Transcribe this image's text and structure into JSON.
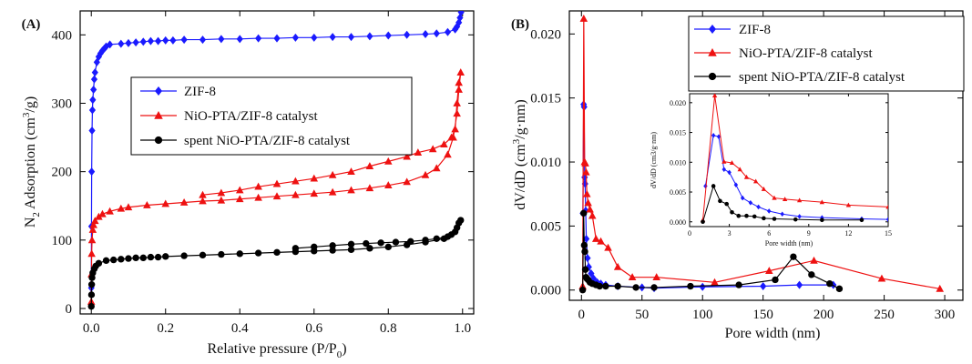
{
  "chart_data": [
    {
      "type": "line",
      "panel_label": "(A)",
      "xlabel": "Relative pressure (P/P0)",
      "xlabel_parts": [
        "Relative pressure (P/P",
        "0",
        ")"
      ],
      "ylabel_parts": [
        "N",
        "2",
        " Adsorption (cm",
        "3",
        "/g)"
      ],
      "xlim": [
        -0.03,
        1.03
      ],
      "ylim": [
        -8,
        435
      ],
      "xticks": [
        0.0,
        0.2,
        0.4,
        0.6,
        0.8,
        1.0
      ],
      "xtick_labels": [
        "0.0",
        "0.2",
        "0.4",
        "0.6",
        "0.8",
        "1.0"
      ],
      "yticks": [
        0,
        100,
        200,
        300,
        400
      ],
      "ytick_labels": [
        "0",
        "100",
        "200",
        "300",
        "400"
      ],
      "legend_position": "center",
      "series": [
        {
          "name": "ZIF-8",
          "color": "#1a1aff",
          "marker": "diamond",
          "x": [
            0.0,
            0.0005,
            0.001,
            0.002,
            0.003,
            0.004,
            0.006,
            0.008,
            0.01,
            0.015,
            0.02,
            0.025,
            0.03,
            0.035,
            0.04,
            0.05,
            0.08,
            0.1,
            0.12,
            0.14,
            0.16,
            0.18,
            0.2,
            0.22,
            0.25,
            0.3,
            0.35,
            0.4,
            0.45,
            0.5,
            0.55,
            0.6,
            0.65,
            0.7,
            0.75,
            0.8,
            0.85,
            0.9,
            0.93,
            0.96,
            0.98,
            0.985,
            0.99,
            0.993,
            0.996
          ],
          "y": [
            30,
            120,
            200,
            260,
            290,
            305,
            320,
            335,
            345,
            360,
            368,
            373,
            377,
            380,
            383,
            386,
            387,
            388,
            389,
            390,
            391,
            391,
            392,
            392,
            393,
            393,
            394,
            394,
            395,
            395,
            396,
            396,
            397,
            397,
            398,
            399,
            400,
            401,
            402,
            404,
            408,
            412,
            418,
            425,
            433
          ]
        },
        {
          "name": "NiO-PTA/ZIF-8 catalyst",
          "color": "#ee1111",
          "marker": "triangle",
          "x": [
            0.0,
            0.0005,
            0.001,
            0.002,
            0.004,
            0.006,
            0.01,
            0.02,
            0.03,
            0.05,
            0.08,
            0.1,
            0.15,
            0.2,
            0.25,
            0.3,
            0.35,
            0.4,
            0.45,
            0.5,
            0.55,
            0.6,
            0.65,
            0.7,
            0.75,
            0.8,
            0.85,
            0.9,
            0.93,
            0.96,
            0.975,
            0.985,
            0.99,
            0.995,
            0.99,
            0.985,
            0.98,
            0.97,
            0.95,
            0.92,
            0.88,
            0.85,
            0.8,
            0.75,
            0.7,
            0.65,
            0.6,
            0.55,
            0.5,
            0.45,
            0.4,
            0.35,
            0.3
          ],
          "y": [
            10,
            50,
            80,
            100,
            115,
            122,
            128,
            134,
            138,
            142,
            146,
            148,
            151,
            153,
            155,
            157,
            158,
            160,
            162,
            164,
            166,
            168,
            170,
            173,
            176,
            180,
            185,
            195,
            205,
            225,
            250,
            285,
            320,
            345,
            330,
            300,
            262,
            250,
            240,
            233,
            228,
            222,
            215,
            208,
            200,
            195,
            190,
            186,
            182,
            178,
            173,
            169,
            166
          ]
        },
        {
          "name": "spent NiO-PTA/ZIF-8 catalyst",
          "color": "#000000",
          "marker": "circle",
          "x": [
            0.0,
            0.0005,
            0.001,
            0.002,
            0.004,
            0.008,
            0.012,
            0.02,
            0.04,
            0.06,
            0.08,
            0.1,
            0.12,
            0.14,
            0.16,
            0.18,
            0.2,
            0.25,
            0.3,
            0.35,
            0.4,
            0.45,
            0.5,
            0.55,
            0.6,
            0.65,
            0.7,
            0.75,
            0.8,
            0.85,
            0.9,
            0.95,
            0.97,
            0.985,
            0.995,
            0.99,
            0.98,
            0.96,
            0.93,
            0.9,
            0.86,
            0.82,
            0.78,
            0.74,
            0.7,
            0.65,
            0.6,
            0.55
          ],
          "y": [
            3,
            20,
            35,
            45,
            52,
            58,
            62,
            66,
            70,
            71,
            72,
            73,
            74,
            74,
            75,
            75,
            76,
            77,
            78,
            79,
            80,
            81,
            82,
            83,
            84,
            85,
            86,
            88,
            90,
            93,
            97,
            102,
            108,
            118,
            129,
            125,
            112,
            105,
            102,
            100,
            98,
            97,
            96,
            95,
            94,
            92,
            90,
            88
          ]
        }
      ]
    },
    {
      "type": "line",
      "panel_label": "(B)",
      "xlabel": "Pore width (nm)",
      "ylabel_parts": [
        "dV/dD (cm",
        "3",
        "/g·nm)"
      ],
      "xlim": [
        -10,
        315
      ],
      "ylim": [
        -0.0008,
        0.0218
      ],
      "xticks": [
        0,
        50,
        100,
        150,
        200,
        250,
        300
      ],
      "xtick_labels": [
        "0",
        "50",
        "100",
        "150",
        "200",
        "250",
        "300"
      ],
      "yticks": [
        0.0,
        0.005,
        0.01,
        0.015,
        0.02
      ],
      "ytick_labels": [
        "0.000",
        "0.005",
        "0.010",
        "0.015",
        "0.020"
      ],
      "legend_position": "top-right",
      "series": [
        {
          "name": "ZIF-8",
          "color": "#1a1aff",
          "marker": "diamond",
          "x": [
            1.2,
            1.8,
            2.2,
            2.6,
            3.0,
            3.5,
            4.0,
            5.0,
            6.0,
            8.0,
            10,
            13,
            16,
            20,
            30,
            50,
            60,
            100,
            150,
            180,
            208
          ],
          "y": [
            0.006,
            0.0145,
            0.0143,
            0.0088,
            0.0083,
            0.0062,
            0.004,
            0.0025,
            0.0018,
            0.0013,
            0.0009,
            0.0006,
            0.0005,
            0.0004,
            0.0003,
            0.0002,
            0.00015,
            0.00025,
            0.0003,
            0.0004,
            0.0004
          ]
        },
        {
          "name": "NiO-PTA/ZIF-8 catalyst",
          "color": "#ee1111",
          "marker": "triangle",
          "x": [
            1.0,
            1.9,
            2.6,
            3.2,
            3.8,
            4.5,
            5.5,
            7,
            9,
            12,
            16,
            22,
            30,
            42,
            62,
            110,
            155,
            192,
            248,
            296
          ],
          "y": [
            0.0003,
            0.0212,
            0.01,
            0.0099,
            0.0092,
            0.0075,
            0.0068,
            0.0063,
            0.0058,
            0.004,
            0.0038,
            0.0033,
            0.0018,
            0.001,
            0.001,
            0.0006,
            0.0015,
            0.0023,
            0.0009,
            0.0001
          ]
        },
        {
          "name": "spent NiO-PTA/ZIF-8 catalyst",
          "color": "#000000",
          "marker": "circle",
          "x": [
            1.0,
            1.8,
            2.3,
            2.8,
            3.2,
            3.8,
            4.5,
            5.5,
            7,
            9,
            12,
            15,
            20,
            30,
            45,
            60,
            90,
            130,
            160,
            175,
            190,
            205,
            213
          ],
          "y": [
            0.0,
            0.006,
            0.0035,
            0.003,
            0.0016,
            0.001,
            0.0009,
            0.0008,
            0.0006,
            0.0005,
            0.0004,
            0.0003,
            0.0003,
            0.0003,
            0.0002,
            0.0002,
            0.0003,
            0.0004,
            0.0008,
            0.0026,
            0.0012,
            0.0005,
            0.0001
          ]
        }
      ]
    },
    {
      "type": "line",
      "panel_label": "",
      "role": "inset",
      "xlabel": "Pore width (nm)",
      "ylabel": "dV/dD (cm3/g·nm)",
      "xlim": [
        0,
        15
      ],
      "ylim": [
        -0.0008,
        0.0215
      ],
      "xticks": [
        0,
        3,
        6,
        9,
        12,
        15
      ],
      "xtick_labels": [
        "0",
        "3",
        "6",
        "9",
        "12",
        "15"
      ],
      "yticks": [
        0.0,
        0.005,
        0.01,
        0.015,
        0.02
      ],
      "ytick_labels": [
        "0.000",
        "0.005",
        "0.010",
        "0.015",
        "0.020"
      ],
      "series": [
        {
          "color": "#1a1aff",
          "marker": "diamond",
          "x": [
            1.2,
            1.8,
            2.2,
            2.6,
            3.0,
            3.5,
            4.0,
            4.6,
            5.2,
            6.0,
            7.0,
            8.3,
            10.0,
            13.0,
            15.0
          ],
          "y": [
            0.006,
            0.0145,
            0.0143,
            0.0088,
            0.0083,
            0.0062,
            0.004,
            0.0032,
            0.0025,
            0.0018,
            0.0013,
            0.0009,
            0.0007,
            0.0005,
            0.0004
          ]
        },
        {
          "color": "#ee1111",
          "marker": "triangle",
          "x": [
            1.0,
            1.9,
            2.6,
            3.2,
            3.8,
            4.3,
            5.0,
            5.6,
            6.4,
            7.2,
            8.3,
            10.0,
            12.0,
            15.0
          ],
          "y": [
            0.0003,
            0.0212,
            0.0101,
            0.0099,
            0.0088,
            0.0075,
            0.0068,
            0.0055,
            0.004,
            0.0038,
            0.0036,
            0.0033,
            0.0028,
            0.0025
          ]
        },
        {
          "color": "#000000",
          "marker": "circle",
          "x": [
            1.0,
            1.8,
            2.3,
            2.8,
            3.2,
            3.7,
            4.3,
            4.9,
            5.6,
            6.4,
            8.0,
            10.0,
            13.0
          ],
          "y": [
            0.0,
            0.006,
            0.0035,
            0.003,
            0.0016,
            0.001,
            0.001,
            0.0009,
            0.0006,
            0.0005,
            0.0004,
            0.0003,
            0.0003
          ]
        }
      ]
    }
  ]
}
